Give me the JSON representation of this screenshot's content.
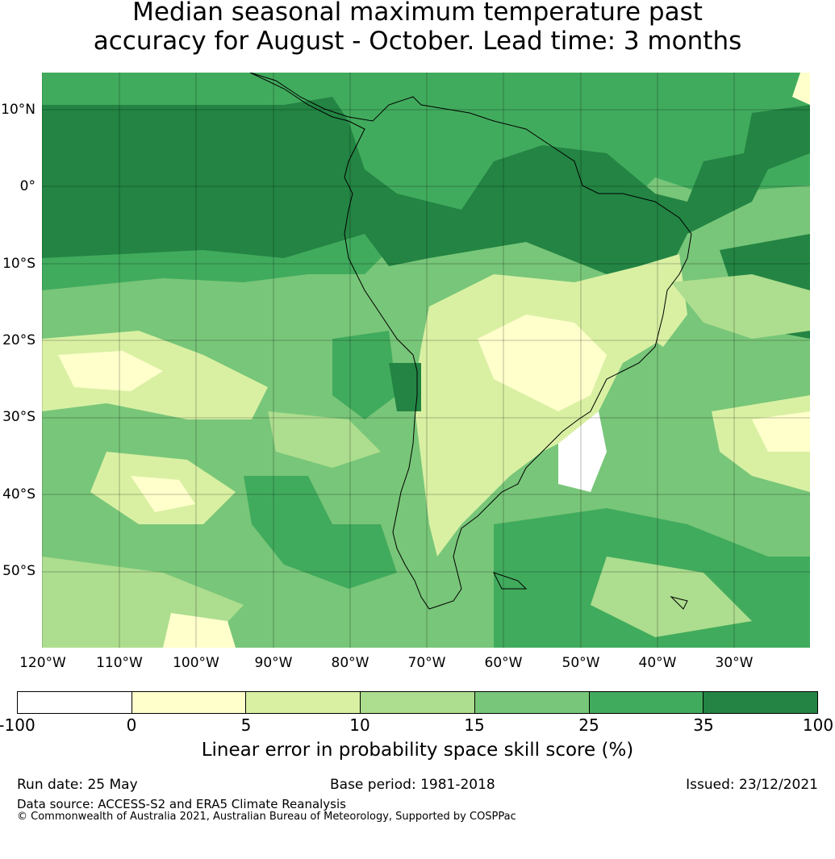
{
  "title_line1": "Median seasonal maximum temperature past",
  "title_line2": "accuracy for August - October. Lead time: 3 months",
  "lat_labels": [
    "10°N",
    "0°",
    "10°S",
    "20°S",
    "30°S",
    "40°S",
    "50°S"
  ],
  "lon_labels": [
    "120°W",
    "110°W",
    "100°W",
    "90°W",
    "80°W",
    "70°W",
    "60°W",
    "50°W",
    "40°W",
    "30°W"
  ],
  "colorbar": {
    "colors": [
      "#ffffff",
      "#ffffcc",
      "#d9f0a3",
      "#addd8e",
      "#78c679",
      "#41ab5d",
      "#238443"
    ],
    "ticks": [
      "-100",
      "0",
      "5",
      "10",
      "15",
      "25",
      "35",
      "100"
    ],
    "label": "Linear error in probability space skill score (%)"
  },
  "footer": {
    "run_date": "Run date: 25 May",
    "base_period": "Base period: 1981-2018",
    "issued": "Issued: 23/12/2021",
    "data_source": "Data source: ACCESS-S2 and ERA5 Climate Reanalysis",
    "copyright": "© Commonwealth of Australia 2021, Australian Bureau of Meteorology, Supported by COSPPac"
  }
}
